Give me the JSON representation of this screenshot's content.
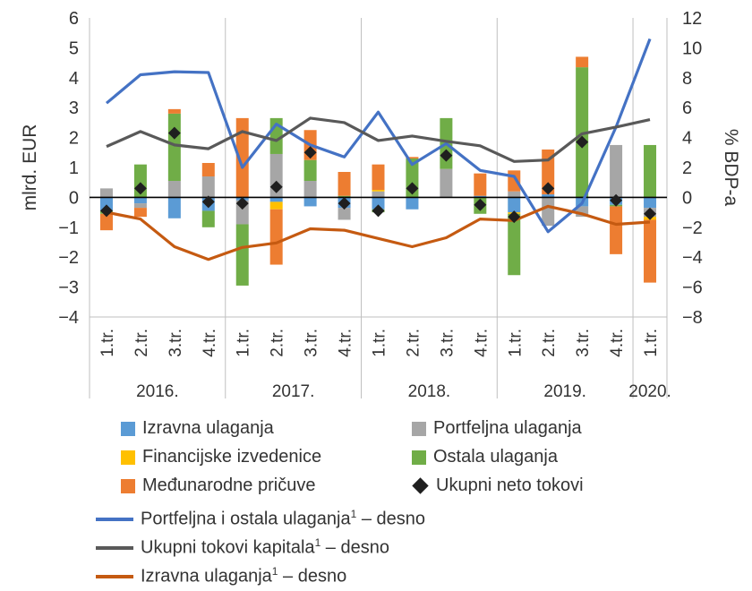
{
  "chart_data": {
    "type": "bar",
    "stacked": true,
    "categories": [
      "1.tr.",
      "2.tr.",
      "3.tr.",
      "4.tr.",
      "1.tr.",
      "2.tr.",
      "3.tr.",
      "4.tr.",
      "1.tr.",
      "2.tr.",
      "3.tr.",
      "4.tr.",
      "1.tr.",
      "2.tr.",
      "3.tr.",
      "4.tr.",
      "1.tr."
    ],
    "years": [
      {
        "label": "2016.",
        "start": 0,
        "end": 3
      },
      {
        "label": "2017.",
        "start": 4,
        "end": 7
      },
      {
        "label": "2018.",
        "start": 8,
        "end": 11
      },
      {
        "label": "2019.",
        "start": 12,
        "end": 15
      },
      {
        "label": "2020.",
        "start": 16,
        "end": 16
      }
    ],
    "ylabel": "mlrd. EUR",
    "y2label": "% BDP-a",
    "ylim": [
      -4,
      6
    ],
    "y2lim": [
      -8,
      12
    ],
    "yticks": [
      "6",
      "5",
      "4",
      "3",
      "2",
      "1",
      "0",
      "−1",
      "−2",
      "−3",
      "−4"
    ],
    "y2ticks": [
      "12",
      "10",
      "8",
      "6",
      "4",
      "2",
      "0",
      "−2",
      "−4",
      "−6",
      "−8"
    ],
    "bar_series": [
      {
        "name": "Izravna ulaganja",
        "color": "#5b9bd5",
        "values": [
          -0.45,
          -0.2,
          -0.7,
          -0.45,
          -0.1,
          -0.15,
          -0.3,
          -0.35,
          -0.4,
          -0.4,
          0.0,
          0.05,
          -0.5,
          0.1,
          -0.3,
          -0.25,
          -0.35
        ]
      },
      {
        "name": "Portfeljna ulaganja",
        "color": "#a6a6a6",
        "values": [
          0.3,
          -0.15,
          0.55,
          0.7,
          -0.8,
          1.45,
          0.55,
          -0.4,
          0.2,
          0.0,
          0.95,
          0.0,
          0.2,
          -0.95,
          -0.35,
          1.75,
          -0.3
        ]
      },
      {
        "name": "Financijske izvedenice",
        "color": "#ffc000",
        "values": [
          0.0,
          0.0,
          0.0,
          0.0,
          0.0,
          -0.25,
          0.0,
          0.0,
          0.05,
          0.0,
          0.0,
          0.0,
          -0.05,
          0.0,
          0.0,
          0.0,
          -0.1
        ]
      },
      {
        "name": "Ostala ulaganja",
        "color": "#70ad47",
        "values": [
          -0.1,
          1.1,
          2.25,
          -0.55,
          -2.05,
          1.2,
          0.7,
          0.05,
          -0.1,
          1.3,
          1.7,
          -0.55,
          -2.05,
          0.0,
          4.35,
          -0.05,
          1.75
        ]
      },
      {
        "name": "Međunarodne pričuve",
        "color": "#ed7d31",
        "values": [
          -0.55,
          -0.3,
          0.15,
          0.45,
          2.65,
          -1.85,
          1.0,
          0.8,
          0.85,
          0.05,
          0.0,
          0.75,
          0.7,
          1.5,
          0.35,
          -1.6,
          -2.1
        ]
      }
    ],
    "total_series": {
      "name": "Ukupni neto tokovi",
      "color": "#1f1f1f",
      "values": [
        -0.45,
        0.3,
        2.15,
        -0.15,
        -0.2,
        0.35,
        1.5,
        -0.2,
        -0.45,
        0.3,
        1.4,
        -0.25,
        -0.65,
        0.3,
        1.85,
        -0.1,
        -0.55
      ]
    },
    "line_series": [
      {
        "name": "Portfeljna i ostala ulaganja¹ – desno",
        "color": "#4472c4",
        "axis": "right",
        "values": [
          6.3,
          8.2,
          8.4,
          8.35,
          2.0,
          4.9,
          3.5,
          2.7,
          5.7,
          2.2,
          3.6,
          1.8,
          1.4,
          -2.3,
          -0.4,
          4.7,
          10.6
        ]
      },
      {
        "name": "Ukupni tokovi kapitala¹ – desno",
        "color": "#595959",
        "axis": "right",
        "values": [
          3.4,
          4.4,
          3.5,
          3.25,
          4.4,
          3.8,
          5.3,
          5.0,
          3.8,
          4.1,
          3.75,
          3.45,
          2.4,
          2.5,
          4.25,
          4.7,
          5.2
        ]
      },
      {
        "name": "Izravna ulaganja¹ – desno",
        "color": "#c55a11",
        "axis": "right",
        "values": [
          -1.0,
          -1.45,
          -3.3,
          -4.15,
          -3.35,
          -3.05,
          -2.1,
          -2.2,
          -2.75,
          -3.3,
          -2.7,
          -1.45,
          -1.55,
          -0.6,
          -1.1,
          -1.8,
          -1.65
        ]
      }
    ]
  },
  "legend": {
    "izravna": "Izravna ulaganja",
    "portfeljna": "Portfeljna ulaganja",
    "izvedenice": "Financijske izvedenice",
    "ostala": "Ostala ulaganja",
    "pricuve": "Međunarodne pričuve",
    "ukupni_neto": "Ukupni neto tokovi",
    "line_portfeljna_ostala": "Portfeljna i ostala ulaganja",
    "line_ukupni_tokovi": "Ukupni tokovi kapitala",
    "line_izravna": "Izravna ulaganja",
    "footnote_mark": "1",
    "desno_suffix": " – desno"
  }
}
